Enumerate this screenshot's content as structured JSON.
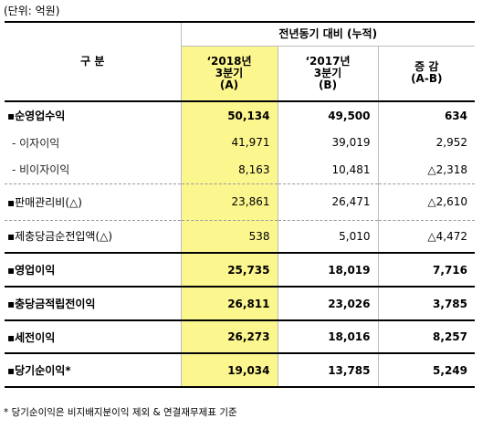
{
  "unit_note": "(단위: 억원)",
  "header": {
    "category": "구 분",
    "group": "전년동기 대비 (누적)",
    "col_a": [
      "‘2018년",
      "3분기",
      "(A)"
    ],
    "col_b": [
      "‘2017년",
      "3분기",
      "(B)"
    ],
    "col_c": [
      "증 감",
      "(A-B)"
    ]
  },
  "rows": [
    {
      "label": "▪순영업수익",
      "a": "50,134",
      "b": "49,500",
      "c": "634"
    },
    {
      "label": "- 이자이익",
      "a": "41,971",
      "b": "39,019",
      "c": "2,952"
    },
    {
      "label": "- 비이자이익",
      "a": "8,163",
      "b": "10,481",
      "c": "△2,318"
    },
    {
      "label": "▪판매관리비(△)",
      "a": "23,861",
      "b": "26,471",
      "c": "△2,610"
    },
    {
      "label": "▪제충당금순전입액(△)",
      "a": "538",
      "b": "5,010",
      "c": "△4,472"
    },
    {
      "label": "▪영업이익",
      "a": "25,735",
      "b": "18,019",
      "c": "7,716"
    },
    {
      "label": "▪충당금적립전이익",
      "a": "26,811",
      "b": "23,026",
      "c": "3,785"
    },
    {
      "label": "▪세전이익",
      "a": "26,273",
      "b": "18,016",
      "c": "8,257"
    },
    {
      "label": "▪당기순이익*",
      "a": "19,034",
      "b": "13,785",
      "c": "5,249"
    }
  ],
  "footnote": "* 당기순이익은 비지배지분이익 제외 & 연결재무제표 기준",
  "colors": {
    "highlight": "#fcf68e"
  }
}
